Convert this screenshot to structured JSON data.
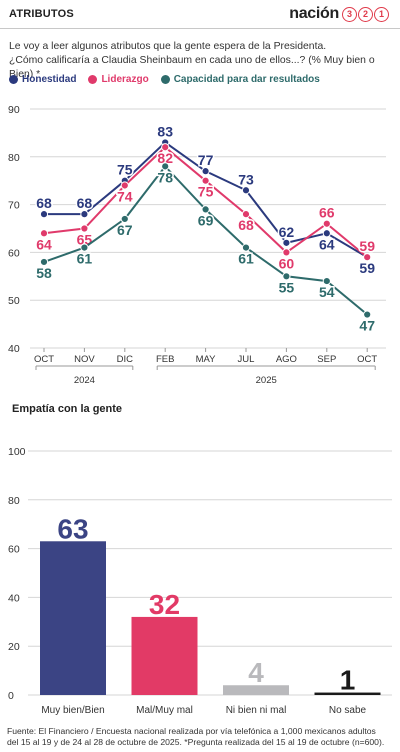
{
  "header": {
    "title": "ATRIBUTOS",
    "brand_word": "nación",
    "brand_digits": [
      "3",
      "2",
      "1"
    ]
  },
  "intro": {
    "line1": "Le voy a leer algunos atributos que la gente espera de la Presidenta.",
    "line2": "¿Cómo calificaría a Claudia Sheinbaum en cada uno de ellos...? (% Muy bien o Bien) *"
  },
  "colors": {
    "honestidad": "#2b3a7e",
    "liderazgo": "#e03a6b",
    "capacidad": "#2e6b6b",
    "bar_muy_bien": "#3b4484",
    "bar_mal": "#e23a66",
    "bar_ni": "#b9b9bc",
    "bar_ns": "#1a1a1a"
  },
  "sections": {
    "empatia_title": "Empatía con la gente"
  },
  "footer": {
    "line1": "Fuente: El Financiero / Encuesta nacional realizada por vía telefónica a 1,000 mexicanos adultos",
    "line2": "del 15 al 19 y de 24 al 28 de octubre de 2025. *Pregunta realizada del 15 al 19 de octubre (n=600)."
  },
  "chart_data": [
    {
      "type": "line",
      "categories": [
        "OCT",
        "NOV",
        "DIC",
        "FEB",
        "MAY",
        "JUL",
        "AGO",
        "SEP",
        "OCT"
      ],
      "year_groups": [
        {
          "label": "2024",
          "from": 0,
          "to": 2
        },
        {
          "label": "2025",
          "from": 3,
          "to": 8
        }
      ],
      "ylim": [
        40,
        90
      ],
      "yticks": [
        40,
        50,
        60,
        70,
        80,
        90
      ],
      "series": [
        {
          "name": "Honestidad",
          "color_key": "honestidad",
          "values": [
            68,
            68,
            75,
            83,
            77,
            73,
            62,
            64,
            59
          ]
        },
        {
          "name": "Liderazgo",
          "color_key": "liderazgo",
          "values": [
            64,
            65,
            74,
            82,
            75,
            68,
            60,
            66,
            59
          ]
        },
        {
          "name": "Capacidad para dar resultados",
          "color_key": "capacidad",
          "values": [
            58,
            61,
            67,
            78,
            69,
            61,
            55,
            54,
            47
          ]
        }
      ],
      "grid": true
    },
    {
      "type": "bar",
      "title": "Empatía con la gente",
      "categories": [
        "Muy bien/Bien",
        "Mal/Muy mal",
        "Ni bien ni mal",
        "No sabe"
      ],
      "values": [
        63,
        32,
        4,
        1
      ],
      "color_keys": [
        "bar_muy_bien",
        "bar_mal",
        "bar_ni",
        "bar_ns"
      ],
      "ylim": [
        0,
        100
      ],
      "yticks": [
        0,
        20,
        40,
        60,
        80,
        100
      ],
      "grid": true
    }
  ]
}
